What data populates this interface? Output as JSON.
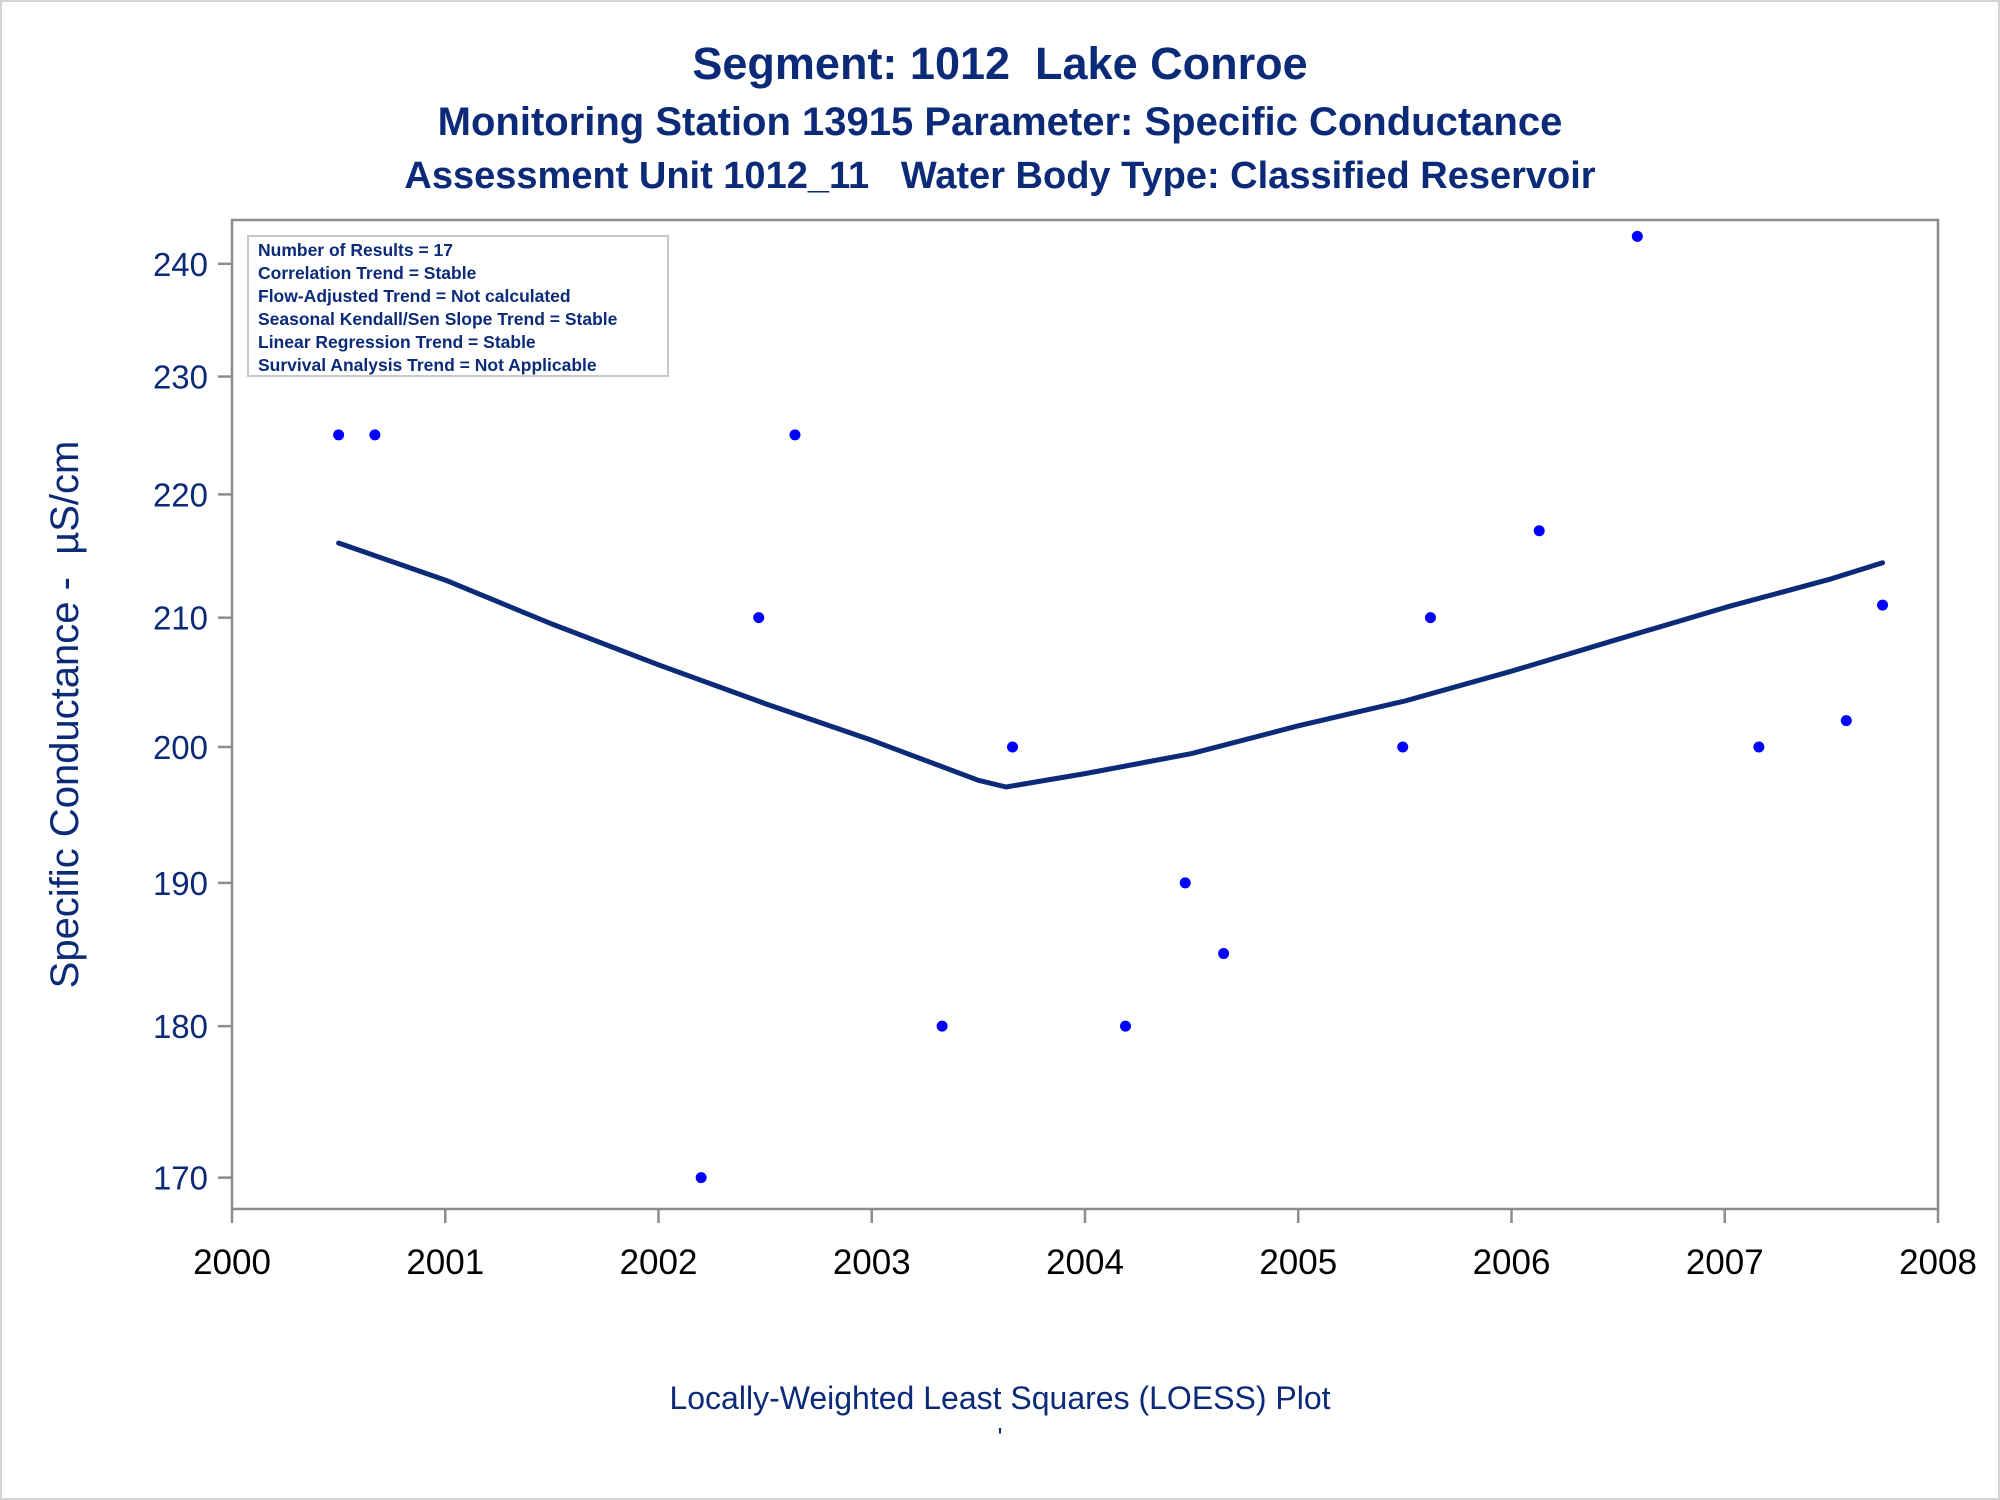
{
  "titles": {
    "line1": "Segment: 1012  Lake Conroe",
    "line2": "Monitoring Station 13915 Parameter: Specific Conductance",
    "line3": "Assessment Unit 1012_11   Water Body Type: Classified Reservoir"
  },
  "footer": {
    "line1": "Locally-Weighted Least Squares (LOESS) Plot",
    "line2": "'"
  },
  "colors": {
    "text": "#0b2a78",
    "points": "#0000ff",
    "loess": "#0b2a78",
    "axis": "#8c8c8c"
  },
  "chart_data": {
    "type": "scatter",
    "ylabel": "Specific Conductance -  µS/cm",
    "xlabel": "",
    "xlim": [
      2000,
      2008
    ],
    "ylim": [
      168,
      244
    ],
    "x_ticks": [
      "2000",
      "2001",
      "2002",
      "2003",
      "2004",
      "2005",
      "2006",
      "2007",
      "2008"
    ],
    "y_ticks": [
      "170",
      "180",
      "190",
      "200",
      "210",
      "220",
      "230",
      "240"
    ],
    "y_scale": "log",
    "grid": false,
    "stats_box": {
      "position": "top-left",
      "lines": [
        "Number of Results = 17",
        "Correlation Trend = Stable",
        "Flow-Adjusted Trend = Not calculated",
        "Seasonal Kendall/Sen Slope Trend = Stable",
        "Linear Regression Trend = Stable",
        "Survival Analysis Trend = Not Applicable"
      ]
    },
    "series": [
      {
        "type": "scatter",
        "points": [
          [
            2000.5,
            225
          ],
          [
            2000.67,
            225
          ],
          [
            2002.2,
            170
          ],
          [
            2002.47,
            210
          ],
          [
            2002.64,
            225
          ],
          [
            2003.33,
            180
          ],
          [
            2003.66,
            200
          ],
          [
            2004.19,
            180
          ],
          [
            2004.47,
            190
          ],
          [
            2004.65,
            185
          ],
          [
            2005.49,
            200
          ],
          [
            2005.62,
            210
          ],
          [
            2006.13,
            217
          ],
          [
            2006.59,
            242.5
          ],
          [
            2007.16,
            200
          ],
          [
            2007.57,
            202
          ],
          [
            2007.74,
            211
          ]
        ]
      },
      {
        "type": "line",
        "points": [
          [
            2000.5,
            216
          ],
          [
            2001.0,
            213
          ],
          [
            2001.5,
            209.5
          ],
          [
            2002.0,
            206.3
          ],
          [
            2002.5,
            203.3
          ],
          [
            2003.0,
            200.5
          ],
          [
            2003.5,
            197.5
          ],
          [
            2003.63,
            197.0
          ],
          [
            2004.0,
            198.0
          ],
          [
            2004.5,
            199.5
          ],
          [
            2005.0,
            201.6
          ],
          [
            2005.5,
            203.5
          ],
          [
            2006.0,
            205.8
          ],
          [
            2006.5,
            208.3
          ],
          [
            2007.0,
            210.8
          ],
          [
            2007.5,
            213.1
          ],
          [
            2007.74,
            214.4
          ]
        ]
      }
    ]
  }
}
